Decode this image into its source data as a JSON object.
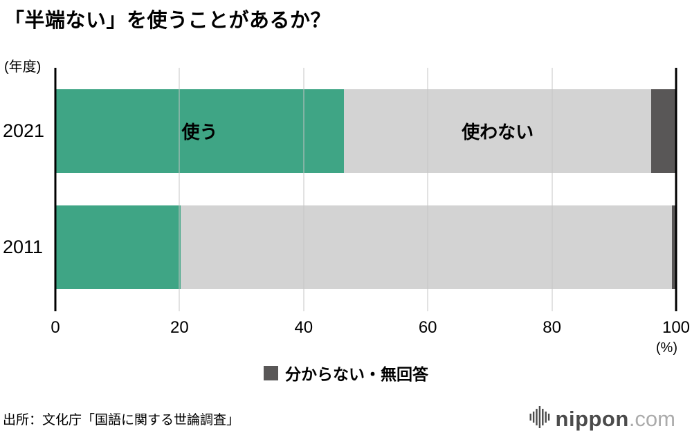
{
  "title": "「半端ない」を使うことがあるか？",
  "y_axis_unit_label": "(年度)",
  "x_axis_unit_label": "(%)",
  "legend": {
    "label": "分からない・無回答",
    "color": "#595757"
  },
  "source": "出所：文化庁「国語に関する世論調査」",
  "logo": {
    "wordmark": "nippon",
    "tld": ".com",
    "wordmark_color": "#4b4b4b",
    "tld_color": "#ababab"
  },
  "chart_data": {
    "type": "bar",
    "orientation": "horizontal",
    "stacked": true,
    "title": "「半端ない」を使うことがあるか？",
    "categories": [
      "2021",
      "2011"
    ],
    "series": [
      {
        "name": "使う",
        "values": [
          46.5,
          20.2
        ],
        "color": "#3fa585",
        "label_on_first_bar": true
      },
      {
        "name": "使わない",
        "values": [
          49.5,
          79.1
        ],
        "color": "#d3d3d3",
        "label_on_first_bar": true
      },
      {
        "name": "分からない・無回答",
        "values": [
          4.0,
          0.7
        ],
        "color": "#595757",
        "label_on_first_bar": false
      }
    ],
    "xticks": [
      0,
      20,
      40,
      60,
      80,
      100
    ],
    "xlim": [
      0,
      100
    ],
    "grid": true,
    "legend_position": "bottom-center"
  }
}
